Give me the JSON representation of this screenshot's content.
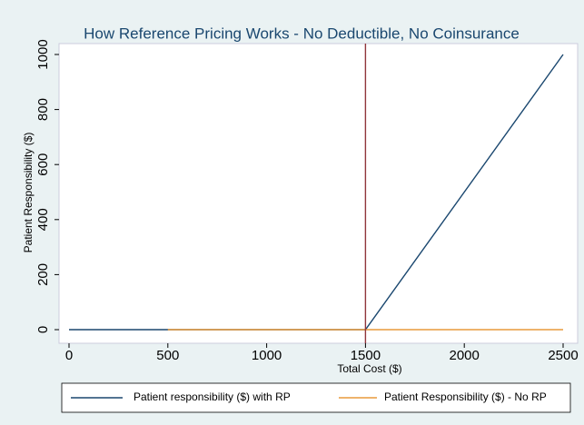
{
  "chart_data": {
    "type": "line",
    "title": "How Reference Pricing Works - No Deductible, No Coinsurance",
    "x_label": "Total Cost ($)",
    "y_label": "Patient Responsibility ($)",
    "series": [
      {
        "name": "Patient responsibility ($) with RP",
        "color": "#1a476f",
        "x": [
          0,
          1500,
          2500
        ],
        "values": [
          0,
          0,
          1000
        ]
      },
      {
        "name": "Patient Responsibility ($) - No RP",
        "color": "#e89a3c",
        "x": [
          500,
          2500
        ],
        "values": [
          0,
          0
        ]
      }
    ],
    "reference_line": {
      "x": 1500,
      "color": "#90353b"
    },
    "xlim": [
      0,
      2500
    ],
    "xticks": [
      0,
      500,
      1000,
      1500,
      2000,
      2500
    ],
    "ylim": [
      0,
      1000
    ],
    "yticks": [
      0,
      200,
      400,
      600,
      800,
      1000
    ],
    "legend": "bottom"
  }
}
